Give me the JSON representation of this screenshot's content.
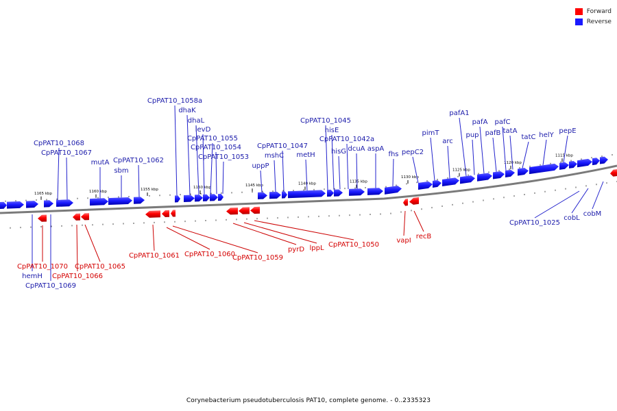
{
  "legend": {
    "items": [
      {
        "label": "Forward",
        "color": "#ff0000"
      },
      {
        "label": "Reverse",
        "color": "#1a1aff"
      }
    ]
  },
  "caption": "Corynebacterium pseudotuberculosis PAT10, complete genome. - 0..2335323",
  "ticks": [
    "1165 kbp",
    "1160 kbp",
    "1155 kbp",
    "1150 kbp",
    "1145 kbp",
    "1140 kbp",
    "1135 kbp",
    "1130 kbp",
    "1125 kbp",
    "1120 kbp",
    "1115 kbp"
  ],
  "reverse_labels": [
    "CpPAT10_1068",
    "CpPAT10_1067",
    "mutA",
    "sbm",
    "CpPAT10_1062",
    "CpPAT10_1058a",
    "dhaK",
    "dhaL",
    "levD",
    "CpPAT10_1055",
    "CpPAT10_1054",
    "CpPAT10_1053",
    "uppP",
    "mshC",
    "CpPAT10_1047",
    "metH",
    "CpPAT10_1045",
    "hisE",
    "hisG",
    "CpPAT10_1042a",
    "dcuA",
    "aspA",
    "fhs",
    "pepC2",
    "pimT",
    "arc",
    "pafA1",
    "pup",
    "pafA",
    "pafB",
    "pafC",
    "tatA",
    "tatC",
    "helY",
    "pepE"
  ],
  "lower_reverse_labels": [
    "hemH",
    "CpPAT10_1069",
    "CpPAT10_1025",
    "cobL",
    "cobM"
  ],
  "forward_labels": [
    "CpPAT10_1070",
    "CpPAT10_1066",
    "CpPAT10_1065",
    "CpPAT10_1061",
    "CpPAT10_1060",
    "CpPAT10_1059",
    "pyrD",
    "lppL",
    "CpPAT10_1050",
    "vapI",
    "recB"
  ],
  "colors": {
    "forward": "#ff0000",
    "reverse": "#1a1aff",
    "label_forward": "#d40000",
    "label_reverse": "#1a1aaa",
    "backbone": "#7a7a7a"
  }
}
